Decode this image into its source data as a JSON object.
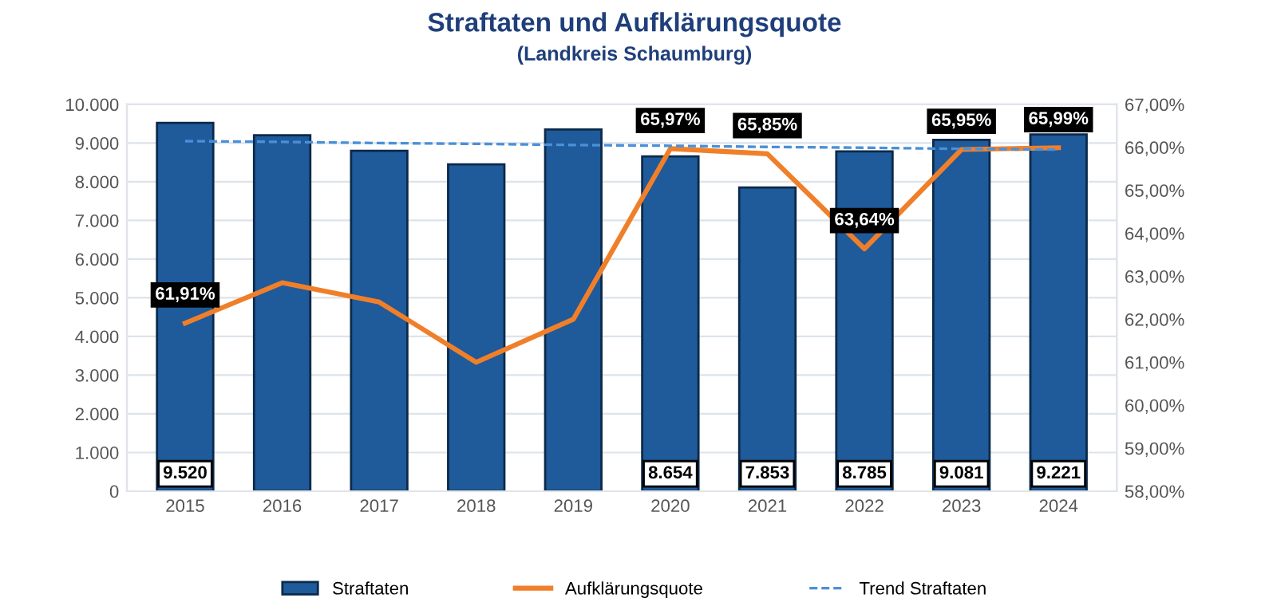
{
  "chart_data": {
    "type": "bar",
    "title": "Straftaten und Aufklärungsquote",
    "subtitle": "(Landkreis Schaumburg)",
    "categories": [
      "2015",
      "2016",
      "2017",
      "2018",
      "2019",
      "2020",
      "2021",
      "2022",
      "2023",
      "2024"
    ],
    "series": [
      {
        "name": "Straftaten",
        "color": "#1f5a9a",
        "values": [
          9520,
          9200,
          8800,
          8450,
          9350,
          8654,
          7853,
          8785,
          9081,
          9221
        ],
        "value_labels": [
          "9.520",
          null,
          null,
          null,
          null,
          "8.654",
          "7.853",
          "8.785",
          "9.081",
          "9.221"
        ]
      },
      {
        "name": "Aufklärungsquote",
        "type": "line",
        "axis": "y2",
        "color": "#f07f2a",
        "values": [
          61.91,
          62.85,
          62.4,
          61.0,
          62.0,
          65.97,
          65.85,
          63.64,
          65.95,
          65.99
        ],
        "value_labels": [
          "61,91%",
          null,
          null,
          null,
          null,
          "65,97%",
          "65,85%",
          "63,64%",
          "65,95%",
          "65,99%"
        ]
      },
      {
        "name": "Trend Straftaten",
        "type": "line",
        "line_style": "dashed",
        "color": "#4a90d9",
        "values": [
          9050,
          9030,
          9000,
          8980,
          8950,
          8930,
          8900,
          8880,
          8850,
          8830
        ]
      }
    ],
    "ylim": [
      0,
      10000
    ],
    "yticks": [
      {
        "value": 0,
        "label": "0"
      },
      {
        "value": 1000,
        "label": "1.000"
      },
      {
        "value": 2000,
        "label": "2.000"
      },
      {
        "value": 3000,
        "label": "3.000"
      },
      {
        "value": 4000,
        "label": "4.000"
      },
      {
        "value": 5000,
        "label": "5.000"
      },
      {
        "value": 6000,
        "label": "6.000"
      },
      {
        "value": 7000,
        "label": "7.000"
      },
      {
        "value": 8000,
        "label": "8.000"
      },
      {
        "value": 9000,
        "label": "9.000"
      },
      {
        "value": 10000,
        "label": "10.000"
      }
    ],
    "y2lim": [
      58,
      67
    ],
    "y2ticks": [
      {
        "value": 58,
        "label": "58,00%"
      },
      {
        "value": 59,
        "label": "59,00%"
      },
      {
        "value": 60,
        "label": "60,00%"
      },
      {
        "value": 61,
        "label": "61,00%"
      },
      {
        "value": 62,
        "label": "62,00%"
      },
      {
        "value": 63,
        "label": "63,00%"
      },
      {
        "value": 64,
        "label": "64,00%"
      },
      {
        "value": 65,
        "label": "65,00%"
      },
      {
        "value": 66,
        "label": "66,00%"
      },
      {
        "value": 67,
        "label": "67,00%"
      }
    ],
    "grid": "y",
    "legend": "bottom"
  }
}
